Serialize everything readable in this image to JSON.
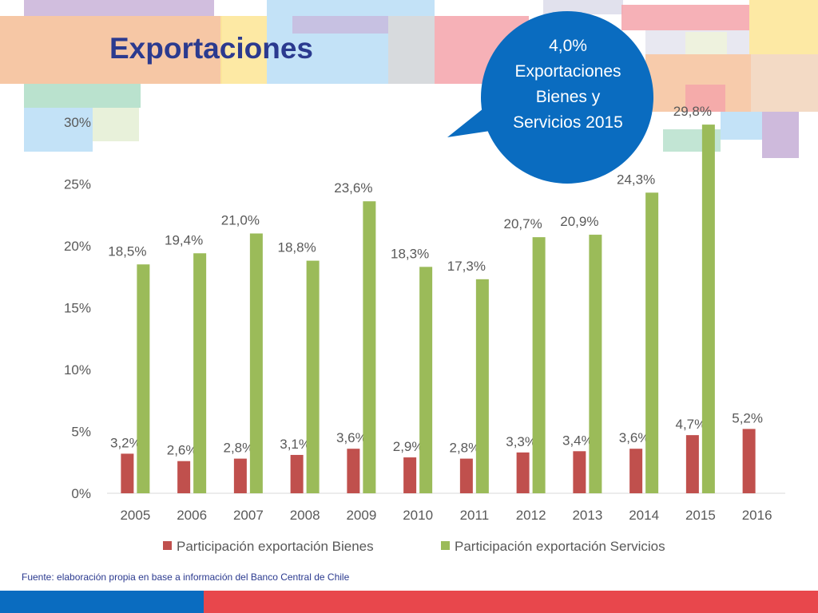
{
  "title": "Exportaciones",
  "callout": {
    "lines": [
      "4,0%",
      "Exportaciones",
      "Bienes y",
      "Servicios 2015"
    ]
  },
  "source": "Fuente: elaboración propia en base a información del Banco Central de Chile",
  "colors": {
    "title": "#2b3a8f",
    "callout": "#0a6cc0",
    "bienes": "#c0504d",
    "servicios": "#9bbb59",
    "axis_text": "#595959",
    "band_blue": "#0a6cc0",
    "band_red": "#e8474c"
  },
  "chart_data": {
    "type": "bar",
    "categories": [
      "2005",
      "2006",
      "2007",
      "2008",
      "2009",
      "2010",
      "2011",
      "2012",
      "2013",
      "2014",
      "2015",
      "2016"
    ],
    "series": [
      {
        "name": "Participación exportación Bienes",
        "values": [
          3.2,
          2.6,
          2.8,
          3.1,
          3.6,
          2.9,
          2.8,
          3.3,
          3.4,
          3.6,
          4.7,
          5.2
        ],
        "labels": [
          "3,2%",
          "2,6%",
          "2,8%",
          "3,1%",
          "3,6%",
          "2,9%",
          "2,8%",
          "3,3%",
          "3,4%",
          "3,6%",
          "4,7%",
          "5,2%"
        ]
      },
      {
        "name": "Participación exportación Servicios",
        "values": [
          18.5,
          19.4,
          21.0,
          18.8,
          23.6,
          18.3,
          17.3,
          20.7,
          20.9,
          24.3,
          29.8,
          null
        ],
        "labels": [
          "18,5%",
          "19,4%",
          "21,0%",
          "18,8%",
          "23,6%",
          "18,3%",
          "17,3%",
          "20,7%",
          "20,9%",
          "24,3%",
          "29,8%",
          ""
        ]
      }
    ],
    "yticks": [
      "0%",
      "5%",
      "10%",
      "15%",
      "20%",
      "25%",
      "30%"
    ],
    "ylim": [
      0,
      30
    ],
    "grid": false,
    "legend_position": "bottom"
  }
}
